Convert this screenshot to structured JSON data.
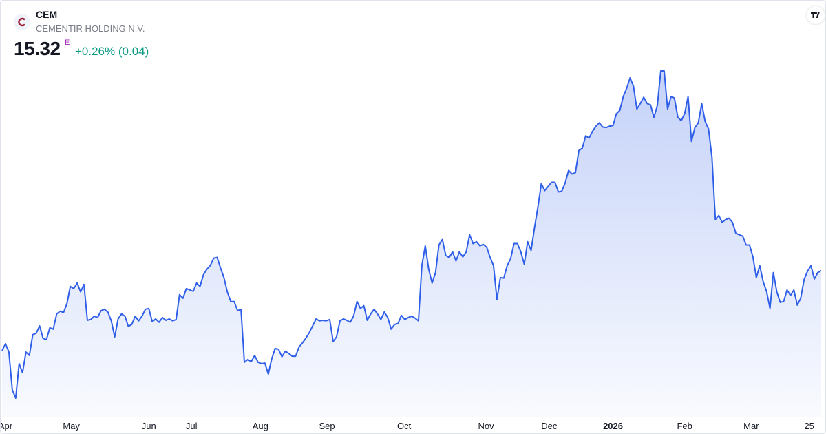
{
  "header": {
    "symbol": "CEM",
    "name": "CEMENTIR HOLDING N.V.",
    "price": 15.32,
    "flag": "E",
    "change": "+0.26% (0.04)"
  },
  "chart_data": {
    "type": "area",
    "color": "#2f5fe8",
    "values": [
      12.42,
      12.67,
      12.37,
      11.0,
      10.7,
      11.95,
      11.62,
      12.37,
      12.25,
      13.0,
      13.05,
      13.32,
      12.87,
      12.82,
      13.25,
      13.2,
      13.75,
      13.85,
      13.8,
      14.12,
      14.75,
      14.67,
      14.87,
      14.55,
      14.82,
      13.52,
      13.55,
      13.67,
      13.62,
      13.87,
      13.92,
      13.82,
      13.5,
      12.92,
      13.57,
      13.75,
      13.67,
      13.3,
      13.37,
      13.67,
      13.5,
      13.67,
      13.92,
      13.95,
      13.47,
      13.57,
      13.45,
      13.62,
      13.52,
      13.57,
      13.5,
      13.55,
      14.45,
      14.32,
      14.67,
      14.62,
      14.57,
      14.87,
      14.75,
      15.17,
      15.37,
      15.5,
      15.77,
      15.8,
      15.42,
      15.07,
      14.55,
      14.2,
      14.2,
      13.87,
      13.92,
      12.0,
      12.1,
      12.02,
      12.25,
      12.0,
      11.95,
      11.97,
      11.57,
      12.12,
      12.5,
      12.47,
      12.2,
      12.4,
      12.32,
      12.22,
      12.22,
      12.55,
      12.7,
      12.87,
      13.07,
      13.32,
      13.57,
      13.5,
      13.52,
      13.5,
      13.55,
      12.75,
      12.92,
      13.5,
      13.57,
      13.52,
      13.45,
      13.67,
      14.2,
      13.95,
      14.05,
      13.52,
      13.75,
      13.92,
      13.75,
      13.55,
      13.82,
      13.62,
      13.2,
      13.37,
      13.4,
      13.7,
      13.55,
      13.62,
      13.67,
      13.6,
      13.5,
      15.5,
      16.22,
      15.37,
      14.87,
      15.25,
      16.25,
      16.45,
      15.87,
      15.8,
      16.0,
      15.67,
      16.0,
      15.82,
      16.0,
      16.62,
      16.3,
      16.37,
      16.22,
      16.27,
      16.17,
      15.8,
      15.5,
      14.27,
      15.07,
      15.05,
      15.5,
      15.75,
      16.3,
      16.3,
      16.0,
      15.55,
      16.37,
      16.05,
      16.87,
      17.62,
      18.47,
      18.22,
      18.37,
      18.52,
      18.52,
      18.17,
      18.2,
      18.5,
      18.95,
      18.82,
      18.87,
      19.67,
      19.75,
      20.2,
      20.12,
      20.37,
      20.55,
      20.67,
      20.52,
      20.5,
      20.55,
      20.57,
      21.0,
      21.12,
      21.62,
      21.92,
      22.3,
      22.0,
      21.17,
      21.37,
      21.6,
      21.37,
      21.32,
      20.87,
      21.3,
      22.55,
      22.55,
      21.17,
      21.62,
      21.57,
      20.87,
      20.75,
      21.0,
      21.62,
      20.0,
      20.5,
      20.67,
      21.37,
      20.72,
      20.45,
      19.42,
      17.17,
      17.32,
      17.07,
      17.17,
      17.22,
      17.07,
      16.67,
      16.62,
      16.57,
      16.25,
      16.25,
      15.82,
      15.07,
      15.5,
      14.92,
      14.57,
      13.95,
      15.25,
      14.55,
      14.17,
      14.2,
      14.62,
      14.42,
      14.62,
      14.07,
      14.32,
      15.0,
      15.3,
      15.5,
      15.02,
      15.25,
      15.32
    ],
    "xticks": [
      {
        "value": 1,
        "label": "Apr"
      },
      {
        "value": 20.3,
        "label": "May"
      },
      {
        "value": 43,
        "label": "Jun"
      },
      {
        "value": 55.5,
        "label": "Jul"
      },
      {
        "value": 75.7,
        "label": "Aug"
      },
      {
        "value": 95.2,
        "label": "Sep"
      },
      {
        "value": 117.8,
        "label": "Oct"
      },
      {
        "value": 141.8,
        "label": "Nov"
      },
      {
        "value": 160.3,
        "label": "Dec"
      },
      {
        "value": 179,
        "label": "2026",
        "bold": true
      },
      {
        "value": 200,
        "label": "Feb"
      },
      {
        "value": 219.5,
        "label": "Mar"
      },
      {
        "value": 236.5,
        "label": "25"
      }
    ]
  }
}
